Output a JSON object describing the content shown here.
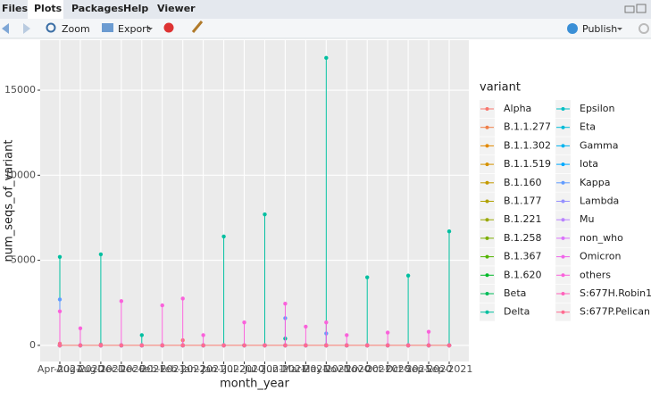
{
  "tabs": [
    "Files",
    "Plots",
    "Packages",
    "Help",
    "Viewer"
  ],
  "toolbar": {
    "zoom": "Zoom",
    "export": "Export",
    "publish": "Publish"
  },
  "chart_data": {
    "type": "lollipop",
    "x_label": "month_year",
    "y_label": "num_seqs_of_variant",
    "legend_title": "variant",
    "categories": [
      "Apr-2021",
      "Aug-2020",
      "Aug-2021",
      "Dec-2020",
      "Dec-2021",
      "Feb-2021",
      "Feb-2022",
      "Jan-2021",
      "Jan-2022",
      "Jul-2020",
      "Jul-2021",
      "Jun-2021",
      "Mar-2021",
      "May-2021",
      "Nov-2020",
      "Nov-2021",
      "Oct-2020",
      "Oct-2021",
      "Sep-2020",
      "Sep-2021"
    ],
    "ylim": [
      -950,
      17940
    ],
    "yticks": [
      0,
      5000,
      10000,
      15000
    ],
    "grid": true,
    "series": [
      {
        "name": "Alpha",
        "color": "#F8766D",
        "values": [
          100,
          0,
          50,
          0,
          0,
          0,
          300,
          0,
          0,
          0,
          0,
          0,
          0,
          0,
          0,
          0,
          0,
          0,
          0,
          0
        ]
      },
      {
        "name": "B.1.1.277",
        "color": "#EF7F48",
        "values": [
          0,
          0,
          0,
          0,
          0,
          0,
          0,
          0,
          0,
          0,
          0,
          0,
          0,
          0,
          0,
          0,
          0,
          0,
          0,
          0
        ]
      },
      {
        "name": "B.1.1.302",
        "color": "#E38900",
        "values": [
          0,
          0,
          0,
          0,
          0,
          0,
          0,
          0,
          0,
          0,
          0,
          0,
          0,
          0,
          0,
          0,
          0,
          0,
          0,
          0
        ]
      },
      {
        "name": "B.1.1.519",
        "color": "#D59100",
        "values": [
          0,
          0,
          0,
          0,
          0,
          0,
          0,
          0,
          0,
          0,
          0,
          0,
          0,
          0,
          0,
          0,
          0,
          0,
          0,
          0
        ]
      },
      {
        "name": "B.1.160",
        "color": "#C49A00",
        "values": [
          0,
          0,
          0,
          0,
          0,
          0,
          0,
          0,
          0,
          0,
          0,
          0,
          0,
          0,
          0,
          0,
          0,
          0,
          0,
          0
        ]
      },
      {
        "name": "B.1.177",
        "color": "#B0A100",
        "values": [
          0,
          0,
          0,
          0,
          0,
          0,
          0,
          0,
          0,
          0,
          0,
          0,
          0,
          0,
          0,
          0,
          0,
          0,
          0,
          0
        ]
      },
      {
        "name": "B.1.221",
        "color": "#99A800",
        "values": [
          0,
          0,
          0,
          0,
          0,
          0,
          0,
          0,
          0,
          0,
          0,
          0,
          0,
          0,
          0,
          0,
          0,
          0,
          0,
          0
        ]
      },
      {
        "name": "B.1.258",
        "color": "#7CAE00",
        "values": [
          0,
          0,
          0,
          0,
          0,
          0,
          0,
          0,
          0,
          0,
          0,
          0,
          0,
          0,
          0,
          0,
          0,
          0,
          0,
          0
        ]
      },
      {
        "name": "B.1.367",
        "color": "#53B400",
        "values": [
          0,
          0,
          0,
          0,
          0,
          0,
          0,
          0,
          0,
          0,
          0,
          0,
          0,
          0,
          0,
          0,
          0,
          0,
          0,
          0
        ]
      },
      {
        "name": "B.1.620",
        "color": "#00B928",
        "values": [
          0,
          0,
          0,
          0,
          0,
          0,
          0,
          0,
          0,
          0,
          0,
          0,
          0,
          0,
          0,
          0,
          0,
          0,
          0,
          0
        ]
      },
      {
        "name": "Beta",
        "color": "#00BC59",
        "values": [
          0,
          0,
          0,
          0,
          0,
          0,
          0,
          0,
          0,
          0,
          0,
          0,
          0,
          0,
          0,
          0,
          0,
          0,
          0,
          0
        ]
      },
      {
        "name": "Delta",
        "color": "#00BFA0",
        "values": [
          5200,
          0,
          5350,
          0,
          600,
          0,
          0,
          0,
          6400,
          0,
          7700,
          400,
          0,
          16900,
          0,
          4000,
          0,
          4100,
          0,
          6700
        ]
      },
      {
        "name": "Epsilon",
        "color": "#00BFC4",
        "values": [
          0,
          0,
          0,
          0,
          0,
          0,
          0,
          0,
          0,
          0,
          0,
          0,
          0,
          0,
          0,
          0,
          0,
          0,
          0,
          0
        ]
      },
      {
        "name": "Eta",
        "color": "#00BCD8",
        "values": [
          0,
          0,
          0,
          0,
          0,
          0,
          0,
          0,
          0,
          0,
          0,
          0,
          0,
          0,
          0,
          0,
          0,
          0,
          0,
          0
        ]
      },
      {
        "name": "Gamma",
        "color": "#00B4EF",
        "values": [
          0,
          0,
          0,
          0,
          0,
          0,
          0,
          0,
          0,
          0,
          0,
          0,
          0,
          0,
          0,
          0,
          0,
          0,
          0,
          0
        ]
      },
      {
        "name": "Iota",
        "color": "#00A9FF",
        "values": [
          0,
          0,
          0,
          0,
          0,
          0,
          0,
          0,
          0,
          0,
          0,
          0,
          0,
          0,
          0,
          0,
          0,
          0,
          0,
          0
        ]
      },
      {
        "name": "Kappa",
        "color": "#619CFF",
        "values": [
          2700,
          0,
          0,
          0,
          0,
          0,
          0,
          0,
          0,
          0,
          0,
          1600,
          0,
          700,
          0,
          0,
          0,
          0,
          0,
          0
        ]
      },
      {
        "name": "Lambda",
        "color": "#9590FF",
        "values": [
          0,
          0,
          0,
          0,
          0,
          0,
          0,
          0,
          0,
          0,
          0,
          0,
          0,
          0,
          0,
          0,
          0,
          0,
          0,
          0
        ]
      },
      {
        "name": "Mu",
        "color": "#B983FF",
        "values": [
          0,
          0,
          0,
          0,
          0,
          0,
          0,
          0,
          0,
          0,
          0,
          0,
          0,
          0,
          0,
          0,
          0,
          0,
          0,
          0
        ]
      },
      {
        "name": "non_who",
        "color": "#DB72FB",
        "values": [
          0,
          0,
          0,
          0,
          0,
          0,
          0,
          0,
          0,
          0,
          0,
          0,
          0,
          0,
          0,
          0,
          0,
          0,
          0,
          0
        ]
      },
      {
        "name": "Omicron",
        "color": "#F066EA",
        "values": [
          0,
          0,
          0,
          0,
          0,
          0,
          0,
          0,
          0,
          0,
          0,
          0,
          0,
          0,
          0,
          0,
          0,
          0,
          0,
          0
        ]
      },
      {
        "name": "others",
        "color": "#FA62DB",
        "values": [
          2000,
          1000,
          0,
          2600,
          0,
          2350,
          2750,
          600,
          0,
          1350,
          0,
          2450,
          1100,
          1350,
          600,
          0,
          750,
          0,
          800,
          0
        ]
      },
      {
        "name": "S:677H.Robin1",
        "color": "#FF62BC",
        "values": [
          0,
          0,
          0,
          0,
          0,
          0,
          0,
          0,
          0,
          0,
          0,
          0,
          0,
          0,
          0,
          0,
          0,
          0,
          0,
          0
        ]
      },
      {
        "name": "S:677P.Pelican",
        "color": "#FF6C91",
        "values": [
          0,
          0,
          0,
          0,
          0,
          0,
          0,
          0,
          0,
          0,
          0,
          0,
          0,
          0,
          0,
          0,
          0,
          0,
          0,
          0
        ]
      }
    ]
  }
}
